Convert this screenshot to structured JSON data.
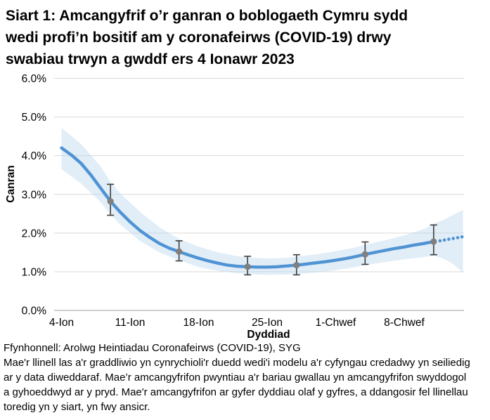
{
  "title_lines": [
    "Siart 1: Amcangyfrif o’r ganran o boblogaeth Cymru sydd",
    "wedi profi’n bositif am y coronafeirws (COVID-19) drwy",
    "swabiau trwyn a gwddf ers 4 Ionawr 2023"
  ],
  "chart_data": {
    "type": "line",
    "title": "Siart 1: Amcangyfrif o’r ganran o boblogaeth Cymru sydd wedi profi’n bositif am y coronafeirws (COVID-19) drwy swabiau trwyn a gwddf ers 4 Ionawr 2023",
    "xlabel": "Dyddiad",
    "ylabel": "Canran",
    "ylim": [
      0,
      6
    ],
    "ytick_labels": [
      "0.0%",
      "1.0%",
      "2.0%",
      "3.0%",
      "4.0%",
      "5.0%",
      "6.0%"
    ],
    "xtick_labels": [
      "4-Ion",
      "11-Ion",
      "18-Ion",
      "25-Ion",
      "1-Chwef",
      "8-Chwef"
    ],
    "xtick_days": [
      0,
      7,
      14,
      21,
      28,
      35
    ],
    "x_unit": "days since 4 Ionawr 2023",
    "x_range_days": [
      0,
      41
    ],
    "grid": "horizontal",
    "legend": "none",
    "colors": {
      "gridline": "#d9d9d9",
      "axis_line": "#bfbfbf",
      "text": "#000000"
    },
    "series": [
      {
        "name": "credible-interval",
        "type": "band",
        "color": "#bdd7ee",
        "opacity": 0.45,
        "points": [
          {
            "x": 0,
            "lo": 3.65,
            "hi": 4.72
          },
          {
            "x": 2,
            "lo": 3.28,
            "hi": 4.3
          },
          {
            "x": 4,
            "lo": 2.8,
            "hi": 3.72
          },
          {
            "x": 5,
            "lo": 2.48,
            "hi": 3.32
          },
          {
            "x": 6,
            "lo": 2.22,
            "hi": 3.02
          },
          {
            "x": 8,
            "lo": 1.8,
            "hi": 2.55
          },
          {
            "x": 10,
            "lo": 1.5,
            "hi": 2.15
          },
          {
            "x": 12,
            "lo": 1.3,
            "hi": 1.85
          },
          {
            "x": 14,
            "lo": 1.12,
            "hi": 1.65
          },
          {
            "x": 16,
            "lo": 1.02,
            "hi": 1.5
          },
          {
            "x": 18,
            "lo": 0.96,
            "hi": 1.4
          },
          {
            "x": 19,
            "lo": 0.94,
            "hi": 1.37
          },
          {
            "x": 21,
            "lo": 0.92,
            "hi": 1.34
          },
          {
            "x": 23,
            "lo": 0.93,
            "hi": 1.36
          },
          {
            "x": 24,
            "lo": 0.94,
            "hi": 1.39
          },
          {
            "x": 26,
            "lo": 0.98,
            "hi": 1.45
          },
          {
            "x": 28,
            "lo": 1.04,
            "hi": 1.53
          },
          {
            "x": 30,
            "lo": 1.12,
            "hi": 1.63
          },
          {
            "x": 31,
            "lo": 1.17,
            "hi": 1.7
          },
          {
            "x": 33,
            "lo": 1.25,
            "hi": 1.81
          },
          {
            "x": 35,
            "lo": 1.32,
            "hi": 1.94
          },
          {
            "x": 37,
            "lo": 1.38,
            "hi": 2.1
          },
          {
            "x": 38,
            "lo": 1.42,
            "hi": 2.24
          },
          {
            "x": 39,
            "lo": 1.34,
            "hi": 2.34
          },
          {
            "x": 40,
            "lo": 1.2,
            "hi": 2.47
          },
          {
            "x": 41,
            "lo": 0.98,
            "hi": 2.6
          }
        ]
      },
      {
        "name": "modelled-trend",
        "type": "line",
        "style": "solid",
        "color": "#4f93d4",
        "points": [
          {
            "x": 0,
            "y": 4.2
          },
          {
            "x": 1,
            "y": 4.02
          },
          {
            "x": 2,
            "y": 3.8
          },
          {
            "x": 3,
            "y": 3.5
          },
          {
            "x": 4,
            "y": 3.16
          },
          {
            "x": 5,
            "y": 2.82
          },
          {
            "x": 6,
            "y": 2.54
          },
          {
            "x": 7,
            "y": 2.29
          },
          {
            "x": 8,
            "y": 2.07
          },
          {
            "x": 9,
            "y": 1.89
          },
          {
            "x": 10,
            "y": 1.73
          },
          {
            "x": 11,
            "y": 1.61
          },
          {
            "x": 12,
            "y": 1.52
          },
          {
            "x": 13,
            "y": 1.43
          },
          {
            "x": 14,
            "y": 1.35
          },
          {
            "x": 15,
            "y": 1.28
          },
          {
            "x": 16,
            "y": 1.22
          },
          {
            "x": 17,
            "y": 1.17
          },
          {
            "x": 18,
            "y": 1.14
          },
          {
            "x": 19,
            "y": 1.13
          },
          {
            "x": 20,
            "y": 1.12
          },
          {
            "x": 21,
            "y": 1.12
          },
          {
            "x": 22,
            "y": 1.13
          },
          {
            "x": 23,
            "y": 1.15
          },
          {
            "x": 24,
            "y": 1.17
          },
          {
            "x": 25,
            "y": 1.2
          },
          {
            "x": 26,
            "y": 1.23
          },
          {
            "x": 27,
            "y": 1.26
          },
          {
            "x": 28,
            "y": 1.3
          },
          {
            "x": 29,
            "y": 1.34
          },
          {
            "x": 30,
            "y": 1.39
          },
          {
            "x": 31,
            "y": 1.45
          },
          {
            "x": 32,
            "y": 1.5
          },
          {
            "x": 33,
            "y": 1.55
          },
          {
            "x": 34,
            "y": 1.6
          },
          {
            "x": 35,
            "y": 1.64
          },
          {
            "x": 36,
            "y": 1.69
          },
          {
            "x": 37,
            "y": 1.73
          },
          {
            "x": 38,
            "y": 1.78
          }
        ]
      },
      {
        "name": "modelled-trend-uncertain",
        "type": "line",
        "style": "dotted",
        "color": "#4f93d4",
        "points": [
          {
            "x": 38.65,
            "y": 1.8
          },
          {
            "x": 39.1,
            "y": 1.82
          },
          {
            "x": 39.55,
            "y": 1.84
          },
          {
            "x": 40.0,
            "y": 1.86
          },
          {
            "x": 40.45,
            "y": 1.88
          },
          {
            "x": 40.9,
            "y": 1.9
          }
        ]
      },
      {
        "name": "official-point-estimates",
        "type": "scatter",
        "marker": "circle",
        "color": "#7f7f7f",
        "error_color": "#3f3f3f",
        "points": [
          {
            "x": 5,
            "y": 2.82,
            "lo": 2.46,
            "hi": 3.26
          },
          {
            "x": 12,
            "y": 1.52,
            "lo": 1.28,
            "hi": 1.8
          },
          {
            "x": 19,
            "y": 1.13,
            "lo": 0.92,
            "hi": 1.4
          },
          {
            "x": 24,
            "y": 1.17,
            "lo": 0.92,
            "hi": 1.44
          },
          {
            "x": 31,
            "y": 1.45,
            "lo": 1.19,
            "hi": 1.77
          },
          {
            "x": 38,
            "y": 1.78,
            "lo": 1.44,
            "hi": 2.21
          }
        ]
      }
    ]
  },
  "footer": {
    "source": "Ffynhonnell: Arolwg Heintiadau Coronafeirws (COVID-19), SYG",
    "note_lines": [
      "Mae'r llinell las a'r graddliwio yn cynrychioli'r duedd wedi'i modelu a'r cyfyngau credadwy yn seiliedig",
      "ar y data diweddaraf. Mae’r amcangyfrifon pwyntiau a'r bariau gwallau yn amcangyfrifon swyddogol",
      "a gyhoeddwyd ar y pryd. Mae'r amcangyfrifon ar gyfer dyddiau olaf y gyfres, a ddangosir fel llinellau",
      "toredig yn y siart, yn fwy ansicr."
    ]
  }
}
